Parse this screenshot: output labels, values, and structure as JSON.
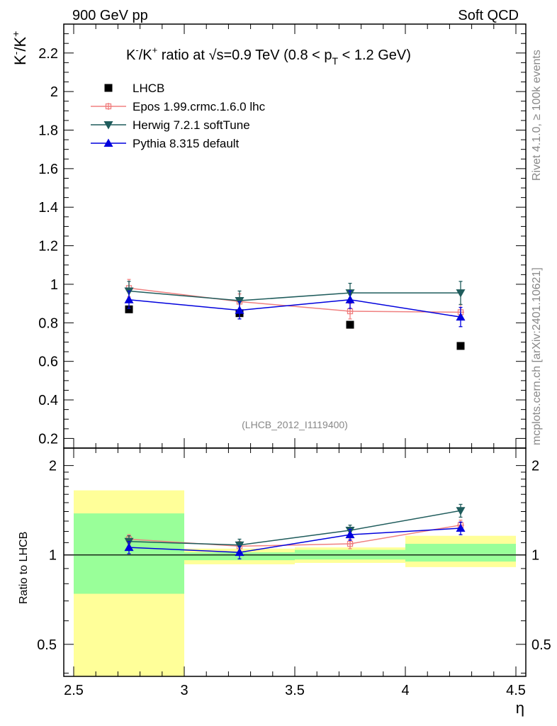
{
  "header": {
    "left": "900 GeV pp",
    "right": "Soft QCD"
  },
  "side": {
    "rivet": "Rivet 4.1.0, ≥ 100k events",
    "mcplots": "mcplots.cern.ch [arXiv:2401.10621]"
  },
  "colors": {
    "data": "#000000",
    "epos": "#f08080",
    "herwig": "#1f5c5c",
    "pythia": "#0000dd",
    "band_outer": "#ffff99",
    "band_inner": "#99ff99"
  },
  "chart_data": [
    {
      "type": "scatter",
      "title": "K⁻/K⁺ ratio at √s=0.9 TeV (0.8 < p_T < 1.2 GeV)",
      "title_parts": {
        "pre": "K",
        "sup1": "-",
        "mid": "/K",
        "sup2": "+",
        "ratio_at": " ratio at ",
        "sqrt": "√",
        "s_eq": "s=0.9 TeV (0.8 < p",
        "sub": "T",
        "post": " < 1.2 GeV)"
      },
      "ylabel": "K⁻/K⁺",
      "ylabel_parts": {
        "a": "K",
        "asup": "-",
        "b": "/K",
        "bsup": "+"
      },
      "xlabel": "η",
      "xlim": [
        2.5,
        4.5
      ],
      "ylim": [
        0.15,
        2.35
      ],
      "x_ticks": [
        2.5,
        3,
        3.5,
        4,
        4.5
      ],
      "x_tick_labels": [
        "2.5",
        "3",
        "3.5",
        "4",
        "4.5"
      ],
      "y_ticks": [
        0.2,
        0.4,
        0.6,
        0.8,
        1,
        1.2,
        1.4,
        1.6,
        1.8,
        2,
        2.2
      ],
      "y_tick_labels": [
        "0.2",
        "0.4",
        "0.6",
        "0.8",
        "1",
        "1.2",
        "1.4",
        "1.6",
        "1.8",
        "2",
        "2.2"
      ],
      "watermark": "(LHCB_2012_I1119400)",
      "legend_position": "top-left",
      "series": [
        {
          "name": "LHCB",
          "marker": "square",
          "x": [
            2.75,
            3.25,
            3.75,
            4.25
          ],
          "y": [
            0.87,
            0.85,
            0.79,
            0.68
          ],
          "yerr": [
            0.01,
            0.01,
            0.01,
            0.01
          ]
        },
        {
          "name": "Epos 1.99.crmc.1.6.0 lhc",
          "marker": "open-cross",
          "x": [
            2.75,
            3.25,
            3.75,
            4.25
          ],
          "y": [
            0.98,
            0.91,
            0.86,
            0.855
          ],
          "yerr": [
            0.045,
            0.04,
            0.04,
            0.04
          ]
        },
        {
          "name": "Herwig 7.2.1 softTune",
          "marker": "triangle-down",
          "x": [
            2.75,
            3.25,
            3.75,
            4.25
          ],
          "y": [
            0.965,
            0.915,
            0.955,
            0.955
          ],
          "yerr": [
            0.05,
            0.05,
            0.05,
            0.06
          ]
        },
        {
          "name": "Pythia 8.315 default",
          "marker": "triangle-up",
          "x": [
            2.75,
            3.25,
            3.75,
            4.25
          ],
          "y": [
            0.92,
            0.865,
            0.92,
            0.83
          ],
          "yerr": [
            0.045,
            0.045,
            0.045,
            0.05
          ]
        }
      ]
    },
    {
      "type": "scatter",
      "title": "",
      "ylabel": "Ratio to LHCB",
      "xlabel": "η",
      "xlim": [
        2.5,
        4.5
      ],
      "ylim": [
        0.39,
        2.29
      ],
      "y_scale": "log",
      "y_ticks": [
        0.5,
        1,
        2
      ],
      "y_tick_labels": [
        "0.5",
        "1",
        "2"
      ],
      "reference_line": 1,
      "bands": [
        {
          "x_range": [
            2.5,
            3.0
          ],
          "outer": [
            0.3,
            1.65
          ],
          "inner": [
            0.74,
            1.38
          ]
        },
        {
          "x_range": [
            3.0,
            3.5
          ],
          "outer": [
            0.93,
            1.05
          ],
          "inner": [
            0.96,
            1.02
          ]
        },
        {
          "x_range": [
            3.5,
            4.0
          ],
          "outer": [
            0.94,
            1.06
          ],
          "inner": [
            0.965,
            1.04
          ]
        },
        {
          "x_range": [
            4.0,
            4.5
          ],
          "outer": [
            0.91,
            1.16
          ],
          "inner": [
            0.95,
            1.09
          ]
        }
      ],
      "series": [
        {
          "name": "Epos 1.99.crmc.1.6.0 lhc",
          "marker": "open-cross",
          "x": [
            2.75,
            3.25,
            3.75,
            4.25
          ],
          "y": [
            1.13,
            1.07,
            1.09,
            1.26
          ],
          "yerr": [
            0.04,
            0.04,
            0.04,
            0.05
          ]
        },
        {
          "name": "Herwig 7.2.1 softTune",
          "marker": "triangle-down",
          "x": [
            2.75,
            3.25,
            3.75,
            4.25
          ],
          "y": [
            1.11,
            1.08,
            1.21,
            1.41
          ],
          "yerr": [
            0.05,
            0.05,
            0.05,
            0.07
          ]
        },
        {
          "name": "Pythia 8.315 default",
          "marker": "triangle-up",
          "x": [
            2.75,
            3.25,
            3.75,
            4.25
          ],
          "y": [
            1.06,
            1.02,
            1.17,
            1.23
          ],
          "yerr": [
            0.05,
            0.05,
            0.05,
            0.06
          ]
        }
      ]
    }
  ]
}
